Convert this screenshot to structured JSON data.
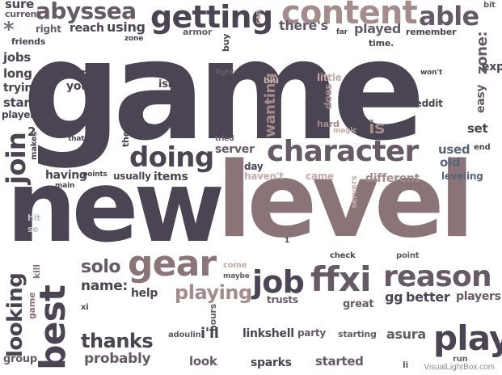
{
  "words": {
    "game": "game",
    "new": "new",
    "level": "level",
    "character": "character",
    "content": "content",
    "getting": "getting",
    "doing": "doing",
    "gear": "gear",
    "job": "job",
    "ffxi": "ffxi",
    "reason": "reason",
    "best": "best",
    "play": "play",
    "looking": "looking",
    "join": "join",
    "abyssea": "abyssea",
    "able": "able",
    "playing": "playing",
    "thanks": "thanks",
    "solo": "solo",
    "theres": "there's",
    "played": "played",
    "probably": "probably",
    "old": "old",
    "leveling": "leveling",
    "used": "used",
    "started": "started",
    "name": "name:",
    "sparks": "sparks",
    "linkshell": "linkshell",
    "party": "party",
    "starting": "starting",
    "asura": "asura",
    "group": "group",
    "help": "help",
    "trusts": "trusts",
    "gg": "gg",
    "better": "better",
    "players": "players",
    "great": "great",
    "look": "look",
    "ill": "i'll",
    "hours": "hours",
    "adoulin": "adoulin",
    "jobs": "jobs",
    "long": "long",
    "trying": "trying",
    "start": "start",
    "player": "player",
    "right": "right",
    "reach": "reach",
    "using": "using",
    "sure": "sure",
    "current": "current",
    "friends": "friends",
    "worth": "worth",
    "youll": "you'll",
    "isnt": "isn't",
    "now": "now.",
    "stuff": "stuff",
    "server": "server",
    "wanting": "wanting",
    "is": "is",
    "set": "set",
    "end": "end",
    "exp": "exp",
    "easy": "easy",
    "zone": "zone:",
    "time": "time.",
    "remember": "remember",
    "bit": "bit",
    "wont": "won't",
    "reddit": "reddit",
    "it": "it,",
    "hard": "hard",
    "magic": "magic",
    "does": "does",
    "little": "little",
    "blu": "blu",
    "three": "3",
    "fight": "fight",
    "buy": "buy",
    "armor": "armor",
    "cap": "cap",
    "far": "far",
    "that": "that.",
    "them": "them.",
    "makes": "makes",
    "two": "2",
    "having": "having",
    "points": "points",
    "usually": "usually",
    "items": "items",
    "main": "main",
    "day": "day",
    "havent": "haven't",
    "came": "came",
    "different": "different",
    "servers": "servers",
    "tried": "tried",
    "one": "1",
    "check": "check",
    "point": "point",
    "come": "come",
    "maybe": "maybe",
    "kill": "kill",
    "xi": "xi",
    "hit": "hit",
    "se": "se",
    "zone2": "zone",
    "run": "run",
    "li": "li",
    "asterisk": "*"
  },
  "colors": {
    "dark": "#4b4452",
    "mid": "#665a66",
    "mauve": "#8a7478",
    "rose": "#a48c8c",
    "pale_rose": "#c4aca9",
    "slate_blue": "#5a667a",
    "pale_blue": "#b9c3d0"
  },
  "watermark": "VisualLightBox.com"
}
